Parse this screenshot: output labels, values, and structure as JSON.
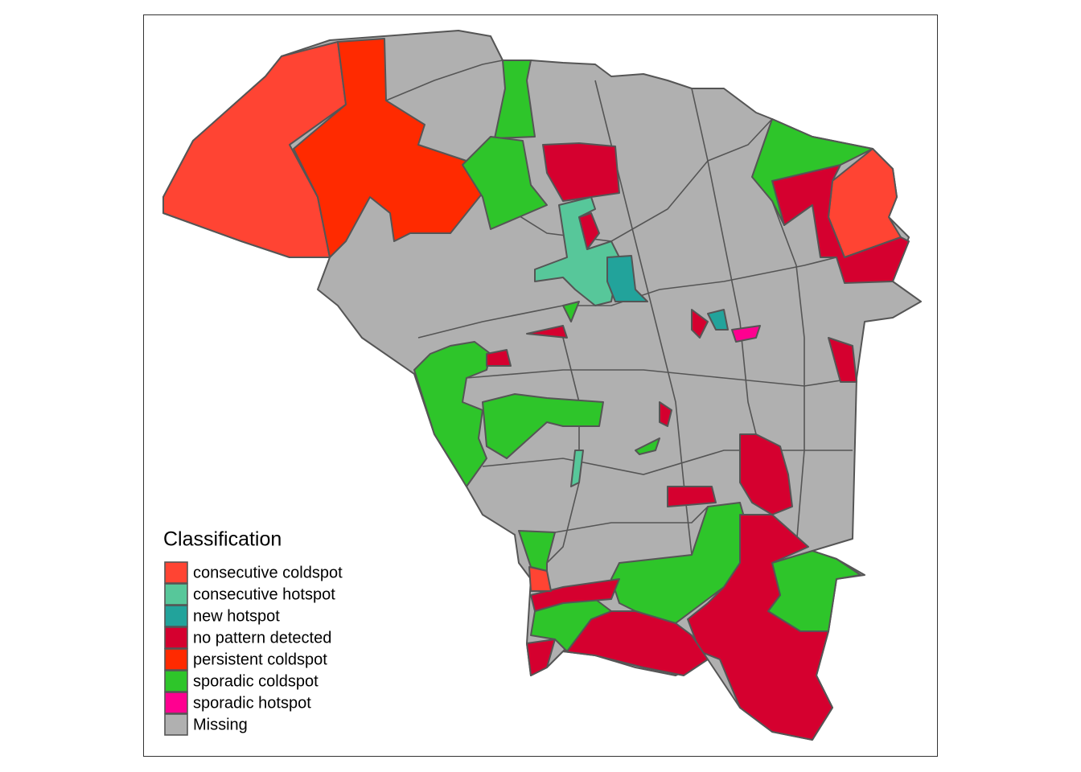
{
  "legend": {
    "title": "Classification",
    "items": [
      {
        "label": "consecutive coldspot",
        "color": "#FF4433"
      },
      {
        "label": "consecutive hotspot",
        "color": "#57C79A"
      },
      {
        "label": "new hotspot",
        "color": "#22A39B"
      },
      {
        "label": "no pattern detected",
        "color": "#D5002F"
      },
      {
        "label": "persistent coldspot",
        "color": "#FF2A00"
      },
      {
        "label": "sporadic coldspot",
        "color": "#2EC52A"
      },
      {
        "label": "sporadic hotspot",
        "color": "#FF0090"
      },
      {
        "label": "Missing",
        "color": "#B0B0B0"
      }
    ]
  }
}
